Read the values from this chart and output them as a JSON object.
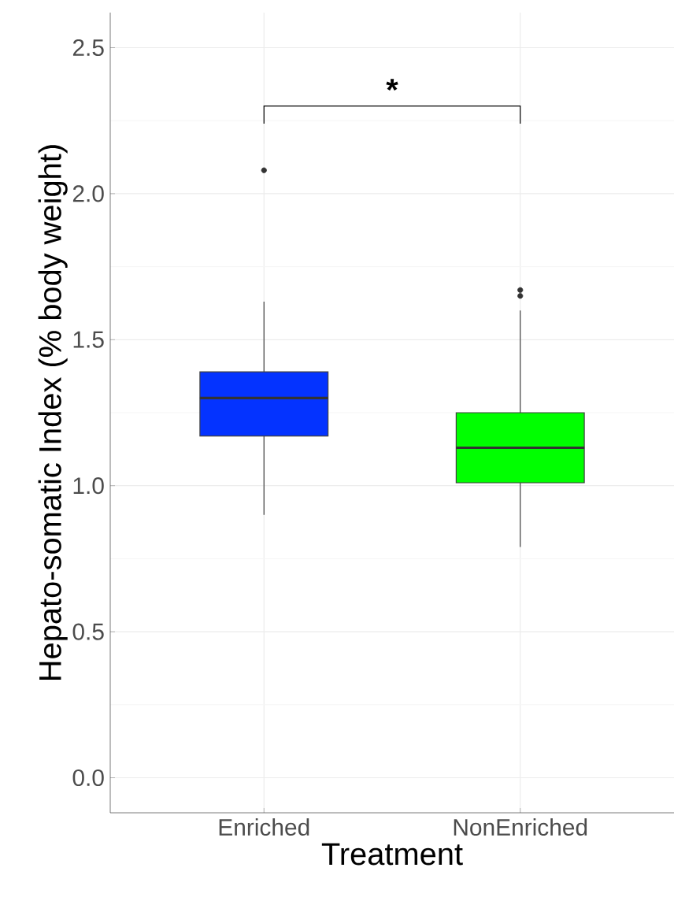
{
  "chart_data": {
    "type": "box",
    "xlabel": "Treatment",
    "ylabel": "Hepato-somatic Index (% body weight)",
    "categories": [
      "Enriched",
      "NonEnriched"
    ],
    "colors": [
      "#0433ff",
      "#00ff00"
    ],
    "boxes": [
      {
        "low": 0.9,
        "q1": 1.17,
        "median": 1.3,
        "q3": 1.39,
        "high": 1.63,
        "outliers": [
          2.08
        ]
      },
      {
        "low": 0.79,
        "q1": 1.01,
        "median": 1.13,
        "q3": 1.25,
        "high": 1.6,
        "outliers": [
          1.67,
          1.65
        ]
      }
    ],
    "ylim": [
      -0.12,
      2.62
    ],
    "yticks": [
      {
        "value": 0,
        "label": "0.0"
      },
      0.5,
      {
        "value": 1,
        "label": "1.0"
      },
      1.5,
      {
        "value": 2,
        "label": "2.0"
      },
      2.5
    ],
    "grid": true,
    "annotations": [
      "*"
    ]
  }
}
